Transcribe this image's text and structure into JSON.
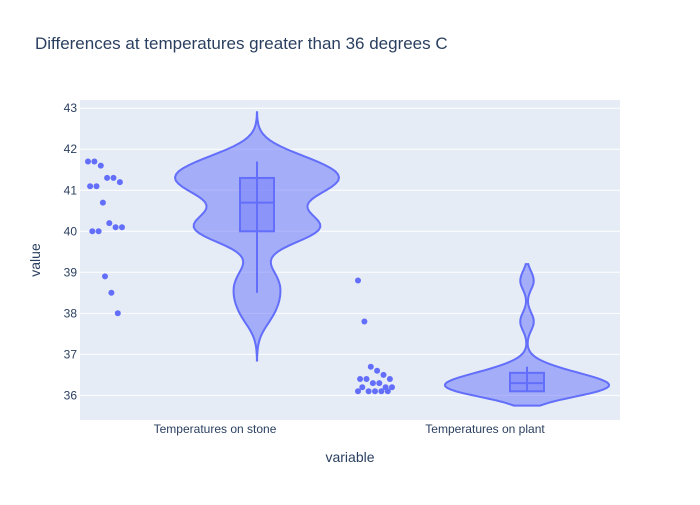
{
  "chart_data": {
    "type": "violin",
    "title": "Differences at temperatures greater than 36 degrees C",
    "xlabel": "variable",
    "ylabel": "value",
    "ylim": [
      35.4,
      43.2
    ],
    "yticks": [
      36,
      37,
      38,
      39,
      40,
      41,
      42,
      43
    ],
    "categories": [
      "Temperatures on stone",
      "Temperatures on plant"
    ],
    "series": [
      {
        "category": "Temperatures on stone",
        "points": [
          41.7,
          41.7,
          41.6,
          41.3,
          41.3,
          41.2,
          41.1,
          41.1,
          40.7,
          40.2,
          40.1,
          40.1,
          40.0,
          40.0,
          38.9,
          38.5,
          38.0
        ],
        "box": {
          "q1": 40.0,
          "median": 40.7,
          "q3": 41.3,
          "whisker_low": 38.5,
          "whisker_high": 41.7
        },
        "violin_range": [
          36.85,
          42.9
        ]
      },
      {
        "category": "Temperatures on plant",
        "points": [
          38.8,
          37.8,
          36.7,
          36.6,
          36.5,
          36.4,
          36.4,
          36.4,
          36.3,
          36.3,
          36.2,
          36.2,
          36.2,
          36.1,
          36.1,
          36.1,
          36.1,
          36.1
        ],
        "box": {
          "q1": 36.1,
          "median": 36.3,
          "q3": 36.55,
          "whisker_low": 36.1,
          "whisker_high": 36.7
        },
        "violin_range": [
          35.75,
          39.2
        ]
      }
    ],
    "colors": {
      "accent": "#636efa",
      "plot_bg": "#e5ecf6",
      "grid": "#ffffff",
      "text": "#2a3f5f"
    }
  }
}
